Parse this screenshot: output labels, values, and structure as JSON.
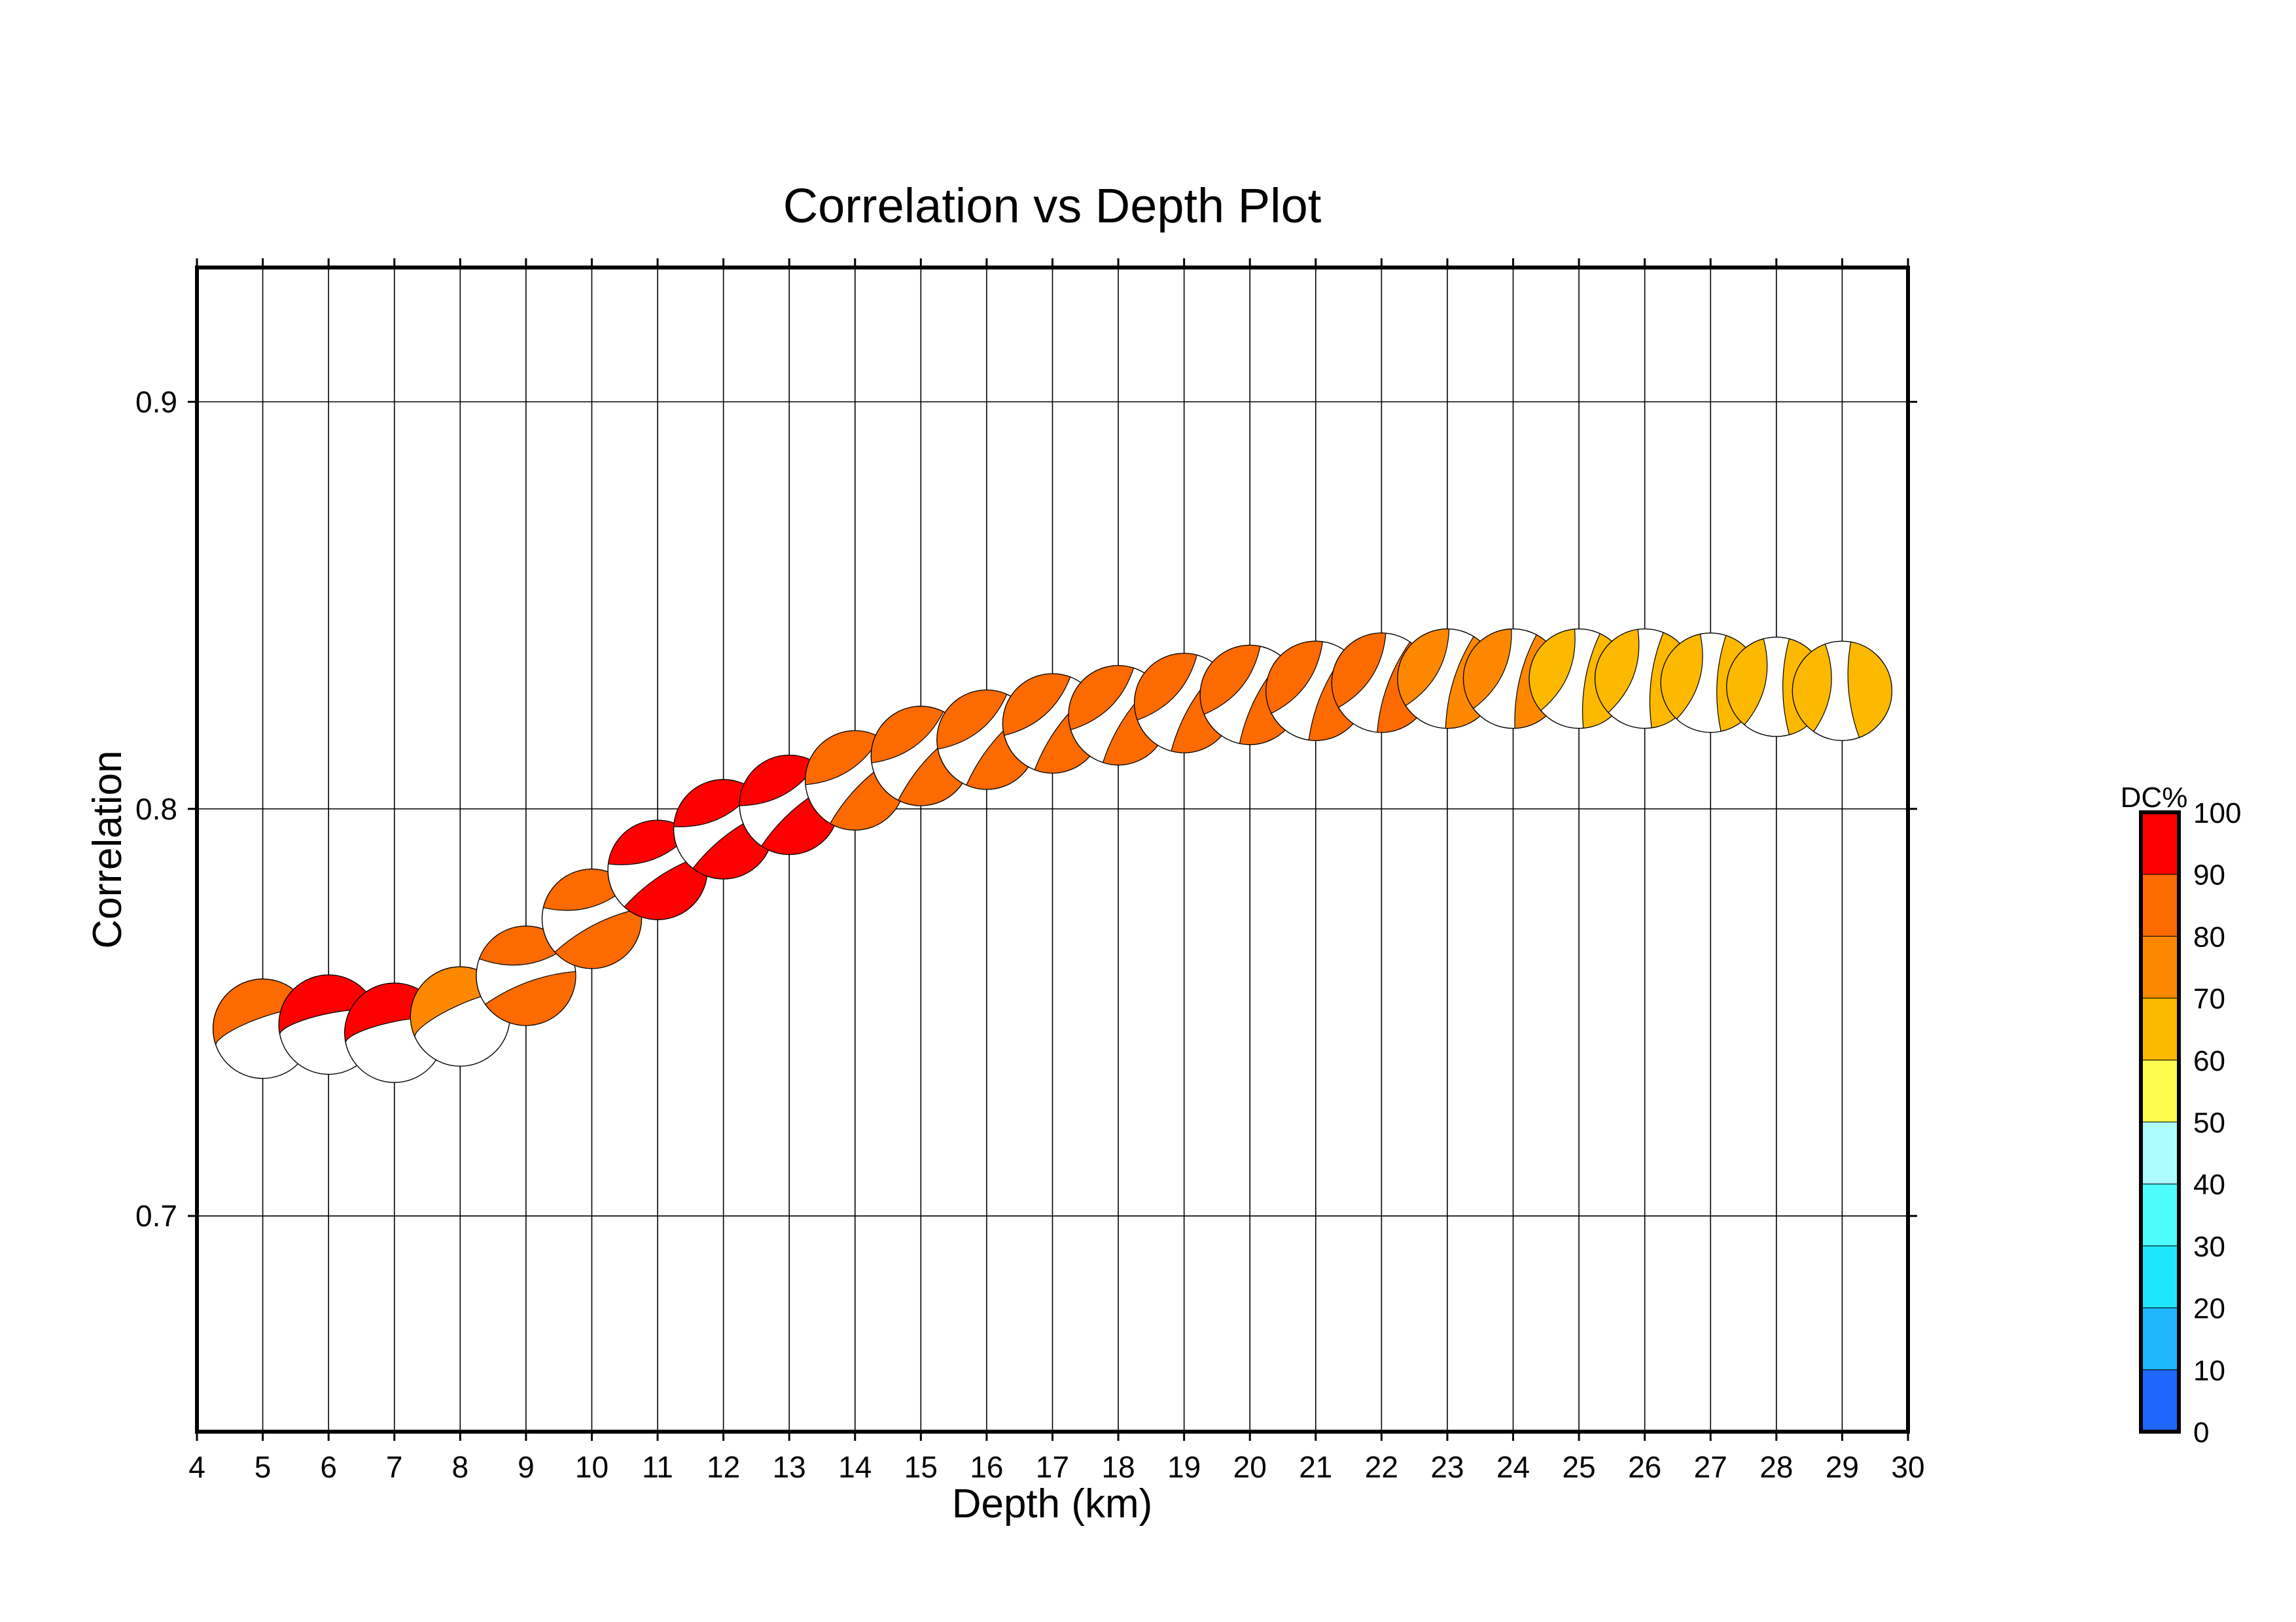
{
  "chart_data": {
    "type": "scatter",
    "title": "Correlation vs Depth Plot",
    "xlabel": "Depth (km)",
    "ylabel": "Correlation",
    "xlim": [
      4,
      30
    ],
    "ylim": [
      0.647,
      0.933
    ],
    "x_ticks": [
      4,
      5,
      6,
      7,
      8,
      9,
      10,
      11,
      12,
      13,
      14,
      15,
      16,
      17,
      18,
      19,
      20,
      21,
      22,
      23,
      24,
      25,
      26,
      27,
      28,
      29,
      30
    ],
    "y_ticks": [
      0.7,
      0.8,
      0.9
    ],
    "y_tick_labels": [
      "0.7",
      "0.8",
      "0.9"
    ],
    "grid": true,
    "marker": "beachball",
    "points": [
      {
        "depth": 5,
        "correlation": 0.746,
        "dc": 85,
        "strike": 200,
        "kind": "split"
      },
      {
        "depth": 6,
        "correlation": 0.747,
        "dc": 95,
        "strike": 192,
        "kind": "split"
      },
      {
        "depth": 7,
        "correlation": 0.745,
        "dc": 95,
        "strike": 192,
        "kind": "split"
      },
      {
        "depth": 8,
        "correlation": 0.749,
        "dc": 75,
        "strike": 205,
        "kind": "split"
      },
      {
        "depth": 9,
        "correlation": 0.759,
        "dc": 85,
        "strike": 215,
        "kind": "crescent"
      },
      {
        "depth": 10,
        "correlation": 0.773,
        "dc": 85,
        "strike": 222,
        "kind": "crescent"
      },
      {
        "depth": 11,
        "correlation": 0.785,
        "dc": 95,
        "strike": 228,
        "kind": "crescent"
      },
      {
        "depth": 12,
        "correlation": 0.795,
        "dc": 95,
        "strike": 232,
        "kind": "crescent"
      },
      {
        "depth": 13,
        "correlation": 0.801,
        "dc": 95,
        "strike": 236,
        "kind": "crescent"
      },
      {
        "depth": 14,
        "correlation": 0.807,
        "dc": 85,
        "strike": 240,
        "kind": "crescent"
      },
      {
        "depth": 15,
        "correlation": 0.813,
        "dc": 85,
        "strike": 243,
        "kind": "crescent"
      },
      {
        "depth": 16,
        "correlation": 0.817,
        "dc": 85,
        "strike": 246,
        "kind": "crescent"
      },
      {
        "depth": 17,
        "correlation": 0.821,
        "dc": 85,
        "strike": 249,
        "kind": "crescent"
      },
      {
        "depth": 18,
        "correlation": 0.823,
        "dc": 85,
        "strike": 252,
        "kind": "crescent"
      },
      {
        "depth": 19,
        "correlation": 0.826,
        "dc": 85,
        "strike": 255,
        "kind": "crescent"
      },
      {
        "depth": 20,
        "correlation": 0.828,
        "dc": 85,
        "strike": 258,
        "kind": "crescent"
      },
      {
        "depth": 21,
        "correlation": 0.829,
        "dc": 85,
        "strike": 262,
        "kind": "crescent"
      },
      {
        "depth": 22,
        "correlation": 0.831,
        "dc": 85,
        "strike": 265,
        "kind": "crescent"
      },
      {
        "depth": 23,
        "correlation": 0.832,
        "dc": 75,
        "strike": 268,
        "kind": "crescent"
      },
      {
        "depth": 24,
        "correlation": 0.832,
        "dc": 75,
        "strike": 272,
        "kind": "crescent"
      },
      {
        "depth": 25,
        "correlation": 0.832,
        "dc": 65,
        "strike": 275,
        "kind": "crescent"
      },
      {
        "depth": 26,
        "correlation": 0.832,
        "dc": 65,
        "strike": 278,
        "kind": "crescent"
      },
      {
        "depth": 27,
        "correlation": 0.831,
        "dc": 65,
        "strike": 282,
        "kind": "crescent"
      },
      {
        "depth": 28,
        "correlation": 0.83,
        "dc": 65,
        "strike": 285,
        "kind": "crescent"
      },
      {
        "depth": 29,
        "correlation": 0.829,
        "dc": 65,
        "strike": 290,
        "kind": "crescent"
      }
    ],
    "colorbar": {
      "label": "DC%",
      "ticks": [
        "0",
        "10",
        "20",
        "30",
        "40",
        "50",
        "60",
        "70",
        "80",
        "90",
        "100"
      ],
      "bands": [
        {
          "from": 0,
          "to": 10,
          "color": "#1f66ff"
        },
        {
          "from": 10,
          "to": 20,
          "color": "#1fb8ff"
        },
        {
          "from": 20,
          "to": 30,
          "color": "#1fe6ff"
        },
        {
          "from": 30,
          "to": 40,
          "color": "#4dfdfd"
        },
        {
          "from": 40,
          "to": 50,
          "color": "#aefdfd"
        },
        {
          "from": 50,
          "to": 60,
          "color": "#fdfd4d"
        },
        {
          "from": 60,
          "to": 70,
          "color": "#fdb800"
        },
        {
          "from": 70,
          "to": 80,
          "color": "#fd8800"
        },
        {
          "from": 80,
          "to": 90,
          "color": "#fd6a00"
        },
        {
          "from": 90,
          "to": 100,
          "color": "#fd0000"
        }
      ]
    }
  }
}
